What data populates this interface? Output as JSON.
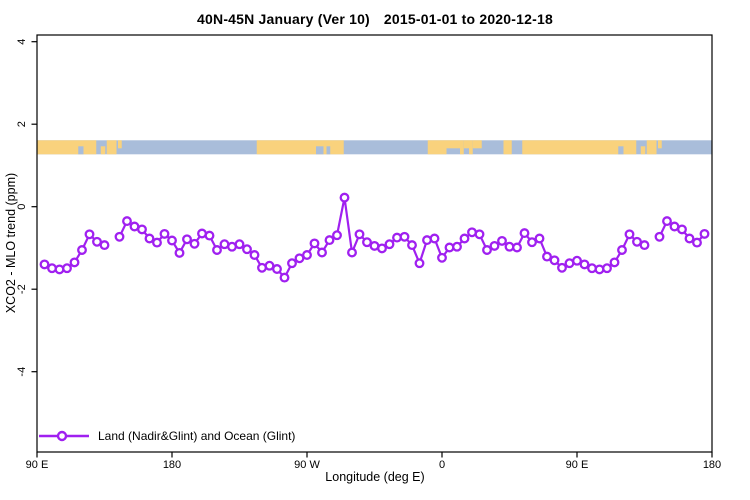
{
  "title": {
    "range_label": "40N-45N January (Ver 10)",
    "date_range": "2015-01-01 to 2020-12-18"
  },
  "axes": {
    "x_label": "Longitude (deg E)",
    "y_label": "XCO2 - MLO trend (ppm)"
  },
  "legend": {
    "label": "Land (Nadir&Glint) and Ocean (Glint)"
  },
  "colors": {
    "series": "#A020F0",
    "marker_fill": "#ffffff",
    "land": "#F9D27D",
    "ocean": "#A9BDDA",
    "axis": "#000000",
    "background": "#ffffff"
  },
  "chart_data": {
    "type": "line",
    "title": "40N-45N January (Ver 10)   2015-01-01 to 2020-12-18",
    "xlabel": "Longitude (deg E)",
    "ylabel": "XCO2 - MLO trend (ppm)",
    "xlim": [
      90,
      540
    ],
    "ylim": [
      -5.95,
      4.16
    ],
    "grid": false,
    "legend_position": "bottom-left-inside",
    "x_ticks": [
      {
        "lon": 90,
        "label": "90 E"
      },
      {
        "lon": 180,
        "label": "180"
      },
      {
        "lon": 270,
        "label": "90 W"
      },
      {
        "lon": 360,
        "label": "0"
      },
      {
        "lon": 450,
        "label": "90 E"
      },
      {
        "lon": 540,
        "label": "180"
      }
    ],
    "y_ticks": [
      {
        "v": 4,
        "label": "4"
      },
      {
        "v": 2,
        "label": "2"
      },
      {
        "v": 0,
        "label": "0"
      },
      {
        "v": -2,
        "label": "-2"
      },
      {
        "v": -4,
        "label": "-4"
      }
    ],
    "series": [
      {
        "name": "Land (Nadir&Glint) and Ocean (Glint)",
        "marker": "open-circle",
        "x": [
          95,
          100,
          105,
          110,
          115,
          120,
          125,
          130,
          135,
          140,
          145,
          150,
          155,
          160,
          165,
          170,
          175,
          180,
          185,
          190,
          195,
          200,
          205,
          210,
          215,
          220,
          225,
          230,
          235,
          240,
          245,
          250,
          255,
          260,
          265,
          270,
          275,
          280,
          285,
          290,
          295,
          300,
          305,
          310,
          315,
          320,
          325,
          330,
          335,
          340,
          345,
          350,
          355,
          360,
          365,
          370,
          375,
          380,
          385,
          390,
          395,
          400,
          405,
          410,
          415,
          420,
          425,
          430,
          435,
          440,
          445,
          450,
          455,
          460,
          465,
          470,
          475,
          480,
          485,
          490,
          495,
          500,
          505,
          510,
          515,
          520,
          525,
          530,
          535
        ],
        "y": [
          -1.4,
          -1.49,
          -1.52,
          -1.49,
          -1.35,
          -1.05,
          -0.67,
          -0.85,
          -0.93,
          null,
          -0.73,
          -0.35,
          -0.48,
          -0.55,
          -0.77,
          -0.87,
          -0.66,
          -0.82,
          -1.12,
          -0.79,
          -0.9,
          -0.65,
          -0.7,
          -1.05,
          -0.91,
          -0.97,
          -0.91,
          -1.03,
          -1.17,
          -1.48,
          -1.43,
          -1.51,
          -1.72,
          -1.37,
          -1.25,
          -1.17,
          -0.89,
          -1.11,
          -0.81,
          -0.69,
          0.22,
          -1.11,
          -0.67,
          -0.86,
          -0.95,
          -1.01,
          -0.91,
          -0.75,
          -0.73,
          -0.93,
          -1.37,
          -0.81,
          -0.77,
          -1.24,
          -0.99,
          -0.97,
          -0.77,
          -0.62,
          -0.67,
          -1.05,
          -0.95,
          -0.83,
          -0.97,
          -0.99,
          -0.64,
          -0.86,
          -0.77,
          -1.21,
          -1.3,
          -1.48,
          -1.37,
          -1.31,
          -1.4,
          -1.49,
          -1.52,
          -1.49,
          -1.35,
          -1.05,
          -0.67,
          -0.85,
          -0.93,
          null,
          -0.73,
          -0.35,
          -0.48,
          -0.55,
          -0.77,
          -0.87,
          -0.66
        ]
      }
    ],
    "map_strip": {
      "description": "40N-45N latitude band world coastline strip, land over ocean",
      "value_top": 1.61,
      "value_bottom": 1.27,
      "land_segments": [
        {
          "from": 350.5,
          "to": 3,
          "part": "full"
        },
        {
          "from": 3,
          "to": 12,
          "part": "top"
        },
        {
          "from": 12,
          "to": 14.5,
          "part": "full"
        },
        {
          "from": 14.5,
          "to": 18,
          "part": "top"
        },
        {
          "from": 18,
          "to": 20.5,
          "part": "full"
        },
        {
          "from": 20.5,
          "to": 26.5,
          "part": "top"
        },
        {
          "from": 41,
          "to": 46.5,
          "part": "full"
        },
        {
          "from": 53.5,
          "to": 129.5,
          "part": "full"
        },
        {
          "from": 132.5,
          "to": 135.5,
          "part": "bottom"
        },
        {
          "from": 136.5,
          "to": 143,
          "part": "full"
        },
        {
          "from": 144,
          "to": 146.5,
          "part": "top"
        },
        {
          "from": 236.5,
          "to": 294.5,
          "part": "full"
        }
      ],
      "water_patches": [
        {
          "from": 117.5,
          "to": 121,
          "part": "bottom"
        },
        {
          "from": 276,
          "to": 281,
          "part": "bottom"
        },
        {
          "from": 283,
          "to": 285.5,
          "part": "bottom"
        }
      ]
    }
  }
}
